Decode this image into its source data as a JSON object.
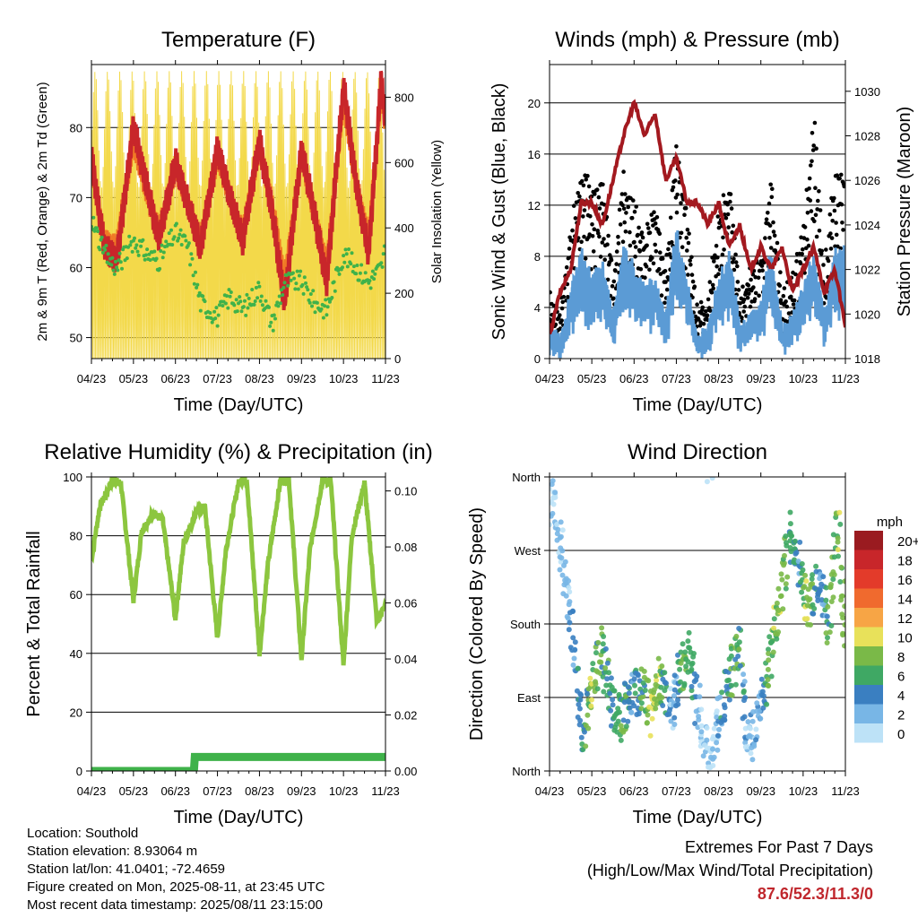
{
  "colors": {
    "temp_2m": "#c8262a",
    "temp_9m": "#f07a26",
    "dewpoint": "#3fb24a",
    "insolation": "#f3d94a",
    "wind": "#5b9bd5",
    "gust": "#000000",
    "pressure": "#a3191f",
    "rh": "#8cc63f",
    "precip": "#3fb24a",
    "extremes": "#c0272d"
  },
  "xticks": [
    "04/23",
    "05/23",
    "06/23",
    "07/23",
    "08/23",
    "09/23",
    "10/23",
    "11/23"
  ],
  "chart_data": [
    {
      "id": "temperature",
      "type": "line",
      "title": "Temperature (F)",
      "xlabel": "Time (Day/UTC)",
      "ylabel": "2m & 9m T (Red, Orange) & 2m Td (Green)",
      "ylabel_right": "Solar Insolation (Yellow)",
      "ylim": [
        47,
        89
      ],
      "yticks": [
        50,
        60,
        70,
        80
      ],
      "ylim_right": [
        0,
        900
      ],
      "yticks_right": [
        0,
        200,
        400,
        600,
        800
      ],
      "grid": true,
      "x": [
        0,
        0.3,
        0.6,
        1.0,
        1.3,
        1.6,
        2.0,
        2.3,
        2.6,
        3.0,
        3.3,
        3.6,
        4.0,
        4.3,
        4.6,
        5.0,
        5.3,
        5.6,
        6.0,
        6.3,
        6.6,
        6.9,
        7.0
      ],
      "series": [
        {
          "name": "2m T",
          "values": [
            76,
            63,
            61,
            80,
            72,
            64,
            75,
            69,
            63,
            77,
            70,
            64,
            78,
            68,
            55,
            77,
            68,
            58,
            86,
            72,
            62,
            87,
            80
          ]
        },
        {
          "name": "9m T",
          "values": [
            75,
            64,
            63,
            78,
            71,
            65,
            74,
            69,
            64,
            76,
            70,
            65,
            77,
            69,
            58,
            76,
            68,
            60,
            84,
            72,
            64,
            85,
            80
          ]
        },
        {
          "name": "2m Td",
          "values": [
            67,
            62,
            60,
            64,
            62,
            61,
            65,
            63,
            55,
            53,
            56,
            54,
            57,
            52,
            58,
            58,
            55,
            54,
            62,
            60,
            58,
            60,
            63
          ]
        },
        {
          "name": "Solar Insolation",
          "axis": "right",
          "values": [
            880,
            0,
            0,
            880,
            0,
            0,
            880,
            0,
            0,
            880,
            0,
            0,
            880,
            0,
            0,
            880,
            0,
            0,
            880,
            0,
            0,
            880,
            0
          ]
        }
      ]
    },
    {
      "id": "winds",
      "type": "scatter",
      "title": "Winds (mph) & Pressure (mb)",
      "xlabel": "Time (Day/UTC)",
      "ylabel": "Sonic Wind & Gust (Blue, Black)",
      "ylabel_right": "Station Pressure (Maroon)",
      "ylim": [
        0,
        23
      ],
      "yticks": [
        0,
        4,
        8,
        12,
        16,
        20
      ],
      "ylim_right": [
        1018,
        1031.2
      ],
      "yticks_right": [
        1018,
        1020,
        1022,
        1024,
        1026,
        1028,
        1030
      ],
      "grid": true,
      "x": [
        0,
        0.25,
        0.5,
        0.75,
        1.0,
        1.25,
        1.5,
        1.75,
        2.0,
        2.25,
        2.5,
        2.75,
        3.0,
        3.25,
        3.5,
        3.75,
        4.0,
        4.25,
        4.5,
        4.75,
        5.0,
        5.25,
        5.5,
        5.75,
        6.0,
        6.25,
        6.5,
        6.75,
        7.0
      ],
      "series": [
        {
          "name": "Sonic Wind",
          "values": [
            2,
            1,
            5,
            8,
            6,
            7,
            3,
            8,
            7,
            5,
            6,
            3,
            10,
            6,
            1,
            2,
            6,
            8,
            2,
            3,
            4,
            8,
            2,
            3,
            5,
            8,
            3,
            8,
            8
          ]
        },
        {
          "name": "Gust",
          "values": [
            4,
            3,
            9,
            14,
            12,
            13,
            6,
            13,
            11,
            9,
            11,
            6,
            16,
            11,
            3,
            4,
            10,
            13,
            4,
            6,
            7,
            13,
            4,
            6,
            9,
            18,
            6,
            13,
            14
          ]
        },
        {
          "name": "Station Pressure",
          "axis": "right",
          "values": [
            1019,
            1021,
            1022,
            1025,
            1025,
            1024,
            1026,
            1028,
            1029.5,
            1028,
            1029,
            1026,
            1027,
            1025,
            1025,
            1024,
            1025,
            1023,
            1024,
            1022,
            1023,
            1022,
            1023,
            1021,
            1022,
            1023,
            1021,
            1022,
            1019.5
          ]
        }
      ]
    },
    {
      "id": "humidity",
      "type": "line",
      "title": "Relative Humidity (%) & Precipitation (in)",
      "xlabel": "Time (Day/UTC)",
      "ylabel": "Percent & Total Rainfall",
      "ylim": [
        0,
        100
      ],
      "yticks": [
        0,
        20,
        40,
        60,
        80,
        100
      ],
      "ylim_right": [
        0,
        0.105
      ],
      "yticks_right": [
        "0.00",
        "0.02",
        "0.04",
        "0.06",
        "0.08",
        "0.10"
      ],
      "grid": true,
      "x": [
        0,
        0.2,
        0.5,
        0.7,
        1.0,
        1.2,
        1.5,
        1.7,
        2.0,
        2.2,
        2.5,
        2.7,
        3.0,
        3.2,
        3.5,
        3.7,
        4.0,
        4.2,
        4.5,
        4.7,
        5.0,
        5.2,
        5.5,
        5.7,
        6.0,
        6.2,
        6.5,
        6.8,
        7.0
      ],
      "series": [
        {
          "name": "Relative Humidity",
          "values": [
            72,
            90,
            99,
            98,
            58,
            82,
            88,
            85,
            52,
            78,
            88,
            90,
            45,
            75,
            98,
            99,
            40,
            70,
            99,
            99,
            38,
            75,
            99,
            98,
            36,
            80,
            98,
            50,
            57
          ]
        },
        {
          "name": "Total Rainfall",
          "axis": "right",
          "values": [
            0,
            0,
            0,
            0,
            0,
            0,
            0,
            0,
            0,
            0,
            0,
            0.005,
            0.005,
            0.005,
            0.005,
            0.005,
            0.005,
            0.005,
            0.005,
            0.005,
            0.005,
            0.005,
            0.005,
            0.005,
            0.005,
            0.005,
            0.005,
            0.005,
            0.005
          ]
        }
      ]
    },
    {
      "id": "direction",
      "type": "scatter",
      "title": "Wind Direction",
      "xlabel": "Time (Day/UTC)",
      "ylabel": "Direction (Colored By Speed)",
      "ylim": [
        0,
        360
      ],
      "yticks": [
        "North",
        "East",
        "South",
        "West",
        "North"
      ],
      "ytick_values": [
        0,
        90,
        180,
        270,
        360
      ],
      "grid": true,
      "x": [
        0.1,
        0.3,
        0.5,
        0.8,
        1.0,
        1.2,
        1.5,
        1.7,
        1.9,
        2.2,
        2.4,
        2.6,
        2.9,
        3.1,
        3.3,
        3.6,
        3.8,
        4.0,
        4.3,
        4.5,
        4.7,
        5.0,
        5.2,
        5.4,
        5.7,
        5.9,
        6.1,
        6.4,
        6.6,
        6.8,
        7.0
      ],
      "series": [
        {
          "name": "Direction",
          "values": [
            330,
            260,
            190,
            40,
            90,
            150,
            80,
            60,
            95,
            100,
            70,
            110,
            80,
            120,
            145,
            50,
            10,
            60,
            120,
            150,
            30,
            80,
            140,
            190,
            290,
            250,
            200,
            230,
            180,
            300,
            180
          ]
        },
        {
          "name": "Speed",
          "values": [
            1,
            2,
            3,
            6,
            9,
            7,
            6,
            8,
            5,
            7,
            10,
            9,
            3,
            6,
            8,
            2,
            1,
            4,
            7,
            7,
            2,
            4,
            8,
            9,
            7,
            5,
            10,
            4,
            7,
            9,
            8
          ]
        }
      ],
      "colorbar": {
        "unit": "mph",
        "labels": [
          "20+",
          "18",
          "16",
          "14",
          "12",
          "10",
          "8",
          "6",
          "4",
          "2",
          "0"
        ],
        "colors": [
          "#9a1b20",
          "#c8262a",
          "#e33b2a",
          "#f06a2e",
          "#f7a545",
          "#e8e15a",
          "#7ab948",
          "#3fa864",
          "#3a7fc1",
          "#78b6e6",
          "#bde2f7"
        ]
      }
    }
  ],
  "info": {
    "location": "Location: Southold",
    "elevation": "Station elevation: 8.93064 m",
    "latlon": "Station lat/lon: 41.0401; -72.4659",
    "created": "Figure created on Mon, 2025-08-11, at 23:45 UTC",
    "recent": "Most recent data timestamp: 2025/08/11 23:15:00"
  },
  "extremes": {
    "line1": "Extremes For Past 7 Days",
    "line2": "(High/Low/Max Wind/Total Precipitation)",
    "values": "87.6/52.3/11.3/0"
  }
}
